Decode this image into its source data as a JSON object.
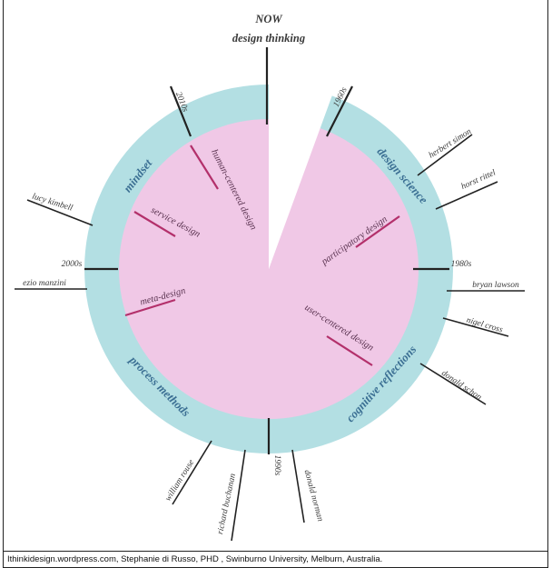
{
  "title": {
    "line1": "NOW",
    "line2": "design thinking"
  },
  "ring_segments": [
    "mindset",
    "design science",
    "cognitive reflections",
    "process methods"
  ],
  "inner_concepts": [
    "human-centered design",
    "service design",
    "meta-design",
    "participatory design",
    "user-centered design"
  ],
  "eras": [
    "1960s",
    "1980s",
    "1990s",
    "2000s",
    "2010s"
  ],
  "people": [
    "herbert simon",
    "horst rittel",
    "bryan lawson",
    "nigel cross",
    "donald schon",
    "donald norman",
    "richard buchanan",
    "william rouse",
    "ezio manzini",
    "lucy kimbell"
  ],
  "colors": {
    "ring": "#b3dfe3",
    "inner": "#f0c8e6",
    "accent_line": "#b3306b",
    "spoke": "#222222"
  },
  "caption": "Ithinkidesign.wordpress.com, Stephanie di Russo, PHD , Swinburno University, Melburn, Australia."
}
